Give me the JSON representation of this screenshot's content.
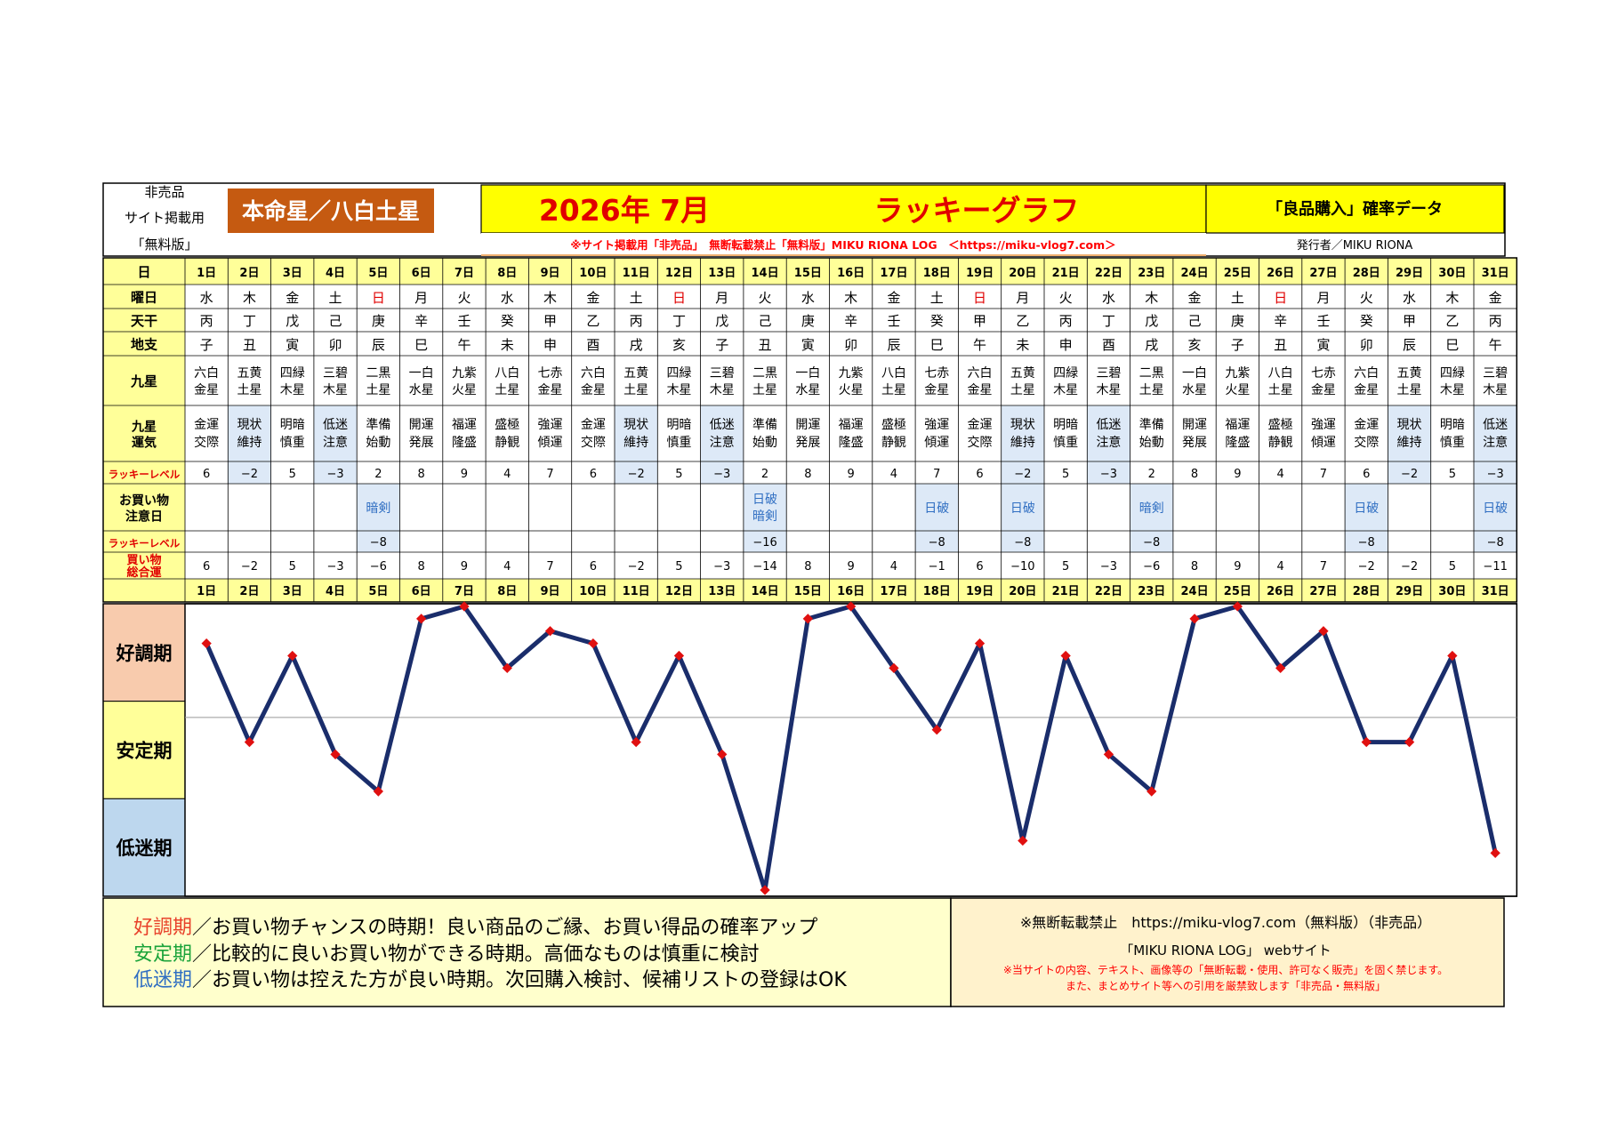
{
  "header": {
    "left_lines": [
      "非売品",
      "サイト掲載用",
      "「無料版」"
    ],
    "honmei": "本命星／八白土星",
    "year_month": "2026年 7月",
    "graph_title": "ラッキーグラフ",
    "right_title": "「良品購入」確率データ",
    "notice": "※サイト掲載用「非売品」　無断転載禁止「無料版」MIKU RIONA LOG　＜https://miku-vlog7.com＞",
    "publisher": "発行者／MIKU RIONA"
  },
  "row_labels": {
    "day": "日",
    "weekday": "曜日",
    "stem": "天干",
    "branch": "地支",
    "star": "九星",
    "fortune": [
      "九星",
      "運気"
    ],
    "lucky_level": "ラッキーレベル",
    "caution": [
      "お買い物",
      "注意日"
    ],
    "lucky_level2": "ラッキーレベル",
    "total": [
      "買い物",
      "総合運"
    ]
  },
  "days": [
    "1日",
    "2日",
    "3日",
    "4日",
    "5日",
    "6日",
    "7日",
    "8日",
    "9日",
    "10日",
    "11日",
    "12日",
    "13日",
    "14日",
    "15日",
    "16日",
    "17日",
    "18日",
    "19日",
    "20日",
    "21日",
    "22日",
    "23日",
    "24日",
    "25日",
    "26日",
    "27日",
    "28日",
    "29日",
    "30日",
    "31日"
  ],
  "weekdays": [
    "水",
    "木",
    "金",
    "土",
    "日",
    "月",
    "火",
    "水",
    "木",
    "金",
    "土",
    "日",
    "月",
    "火",
    "水",
    "木",
    "金",
    "土",
    "日",
    "月",
    "火",
    "水",
    "木",
    "金",
    "土",
    "日",
    "月",
    "火",
    "水",
    "木",
    "金"
  ],
  "stems": [
    "丙",
    "丁",
    "戊",
    "己",
    "庚",
    "辛",
    "壬",
    "癸",
    "甲",
    "乙",
    "丙",
    "丁",
    "戊",
    "己",
    "庚",
    "辛",
    "壬",
    "癸",
    "甲",
    "乙",
    "丙",
    "丁",
    "戊",
    "己",
    "庚",
    "辛",
    "壬",
    "癸",
    "甲",
    "乙",
    "丙"
  ],
  "branches": [
    "子",
    "丑",
    "寅",
    "卯",
    "辰",
    "巳",
    "午",
    "未",
    "申",
    "酉",
    "戌",
    "亥",
    "子",
    "丑",
    "寅",
    "卯",
    "辰",
    "巳",
    "午",
    "未",
    "申",
    "酉",
    "戌",
    "亥",
    "子",
    "丑",
    "寅",
    "卯",
    "辰",
    "巳",
    "午"
  ],
  "stars": [
    [
      "六白",
      "金星"
    ],
    [
      "五黄",
      "土星"
    ],
    [
      "四緑",
      "木星"
    ],
    [
      "三碧",
      "木星"
    ],
    [
      "二黒",
      "土星"
    ],
    [
      "一白",
      "水星"
    ],
    [
      "九紫",
      "火星"
    ],
    [
      "八白",
      "土星"
    ],
    [
      "七赤",
      "金星"
    ],
    [
      "六白",
      "金星"
    ],
    [
      "五黄",
      "土星"
    ],
    [
      "四緑",
      "木星"
    ],
    [
      "三碧",
      "木星"
    ],
    [
      "二黒",
      "土星"
    ],
    [
      "一白",
      "水星"
    ],
    [
      "九紫",
      "火星"
    ],
    [
      "八白",
      "土星"
    ],
    [
      "七赤",
      "金星"
    ],
    [
      "六白",
      "金星"
    ],
    [
      "五黄",
      "土星"
    ],
    [
      "四緑",
      "木星"
    ],
    [
      "三碧",
      "木星"
    ],
    [
      "二黒",
      "土星"
    ],
    [
      "一白",
      "水星"
    ],
    [
      "九紫",
      "火星"
    ],
    [
      "八白",
      "土星"
    ],
    [
      "七赤",
      "金星"
    ],
    [
      "六白",
      "金星"
    ],
    [
      "五黄",
      "土星"
    ],
    [
      "四緑",
      "木星"
    ],
    [
      "三碧",
      "木星"
    ]
  ],
  "fortunes": [
    [
      "金運",
      "交際"
    ],
    [
      "現状",
      "維持"
    ],
    [
      "明暗",
      "慎重"
    ],
    [
      "低迷",
      "注意"
    ],
    [
      "準備",
      "始動"
    ],
    [
      "開運",
      "発展"
    ],
    [
      "福運",
      "隆盛"
    ],
    [
      "盛極",
      "静観"
    ],
    [
      "強運",
      "傾運"
    ],
    [
      "金運",
      "交際"
    ],
    [
      "現状",
      "維持"
    ],
    [
      "明暗",
      "慎重"
    ],
    [
      "低迷",
      "注意"
    ],
    [
      "準備",
      "始動"
    ],
    [
      "開運",
      "発展"
    ],
    [
      "福運",
      "隆盛"
    ],
    [
      "盛極",
      "静観"
    ],
    [
      "強運",
      "傾運"
    ],
    [
      "金運",
      "交際"
    ],
    [
      "現状",
      "維持"
    ],
    [
      "明暗",
      "慎重"
    ],
    [
      "低迷",
      "注意"
    ],
    [
      "準備",
      "始動"
    ],
    [
      "開運",
      "発展"
    ],
    [
      "福運",
      "隆盛"
    ],
    [
      "盛極",
      "静観"
    ],
    [
      "強運",
      "傾運"
    ],
    [
      "金運",
      "交際"
    ],
    [
      "現状",
      "維持"
    ],
    [
      "明暗",
      "慎重"
    ],
    [
      "低迷",
      "注意"
    ]
  ],
  "lucky_levels": [
    "6",
    "−2",
    "5",
    "−3",
    "2",
    "8",
    "9",
    "4",
    "7",
    "6",
    "−2",
    "5",
    "−3",
    "2",
    "8",
    "9",
    "4",
    "7",
    "6",
    "−2",
    "5",
    "−3",
    "2",
    "8",
    "9",
    "4",
    "7",
    "6",
    "−2",
    "5",
    "−3"
  ],
  "cautions": [
    [],
    [],
    [],
    [],
    [
      "暗剣"
    ],
    [],
    [],
    [],
    [],
    [],
    [],
    [],
    [],
    [
      "日破",
      "暗剣"
    ],
    [],
    [],
    [],
    [
      "日破"
    ],
    [],
    [
      "日破"
    ],
    [],
    [],
    [
      "暗剣"
    ],
    [],
    [],
    [],
    [],
    [
      "日破"
    ],
    [],
    [],
    [
      "日破"
    ]
  ],
  "caution_levels": [
    "",
    "",
    "",
    "",
    "−8",
    "",
    "",
    "",
    "",
    "",
    "",
    "",
    "",
    "−16",
    "",
    "",
    "",
    "−8",
    "",
    "−8",
    "",
    "",
    "−8",
    "",
    "",
    "",
    "",
    "−8",
    "",
    "",
    "−8"
  ],
  "totals": [
    "6",
    "−2",
    "5",
    "−3",
    "−6",
    "8",
    "9",
    "4",
    "7",
    "6",
    "−2",
    "5",
    "−3",
    "−14",
    "8",
    "9",
    "4",
    "−1",
    "6",
    "−10",
    "5",
    "−3",
    "−6",
    "8",
    "9",
    "4",
    "7",
    "−2",
    "−2",
    "5",
    "−11"
  ],
  "period_labels": [
    "好調期",
    "安定期",
    "低迷期"
  ],
  "chart_data": {
    "type": "line",
    "title": "ラッキーグラフ",
    "xlabel": "",
    "ylabel": "",
    "x": [
      1,
      2,
      3,
      4,
      5,
      6,
      7,
      8,
      9,
      10,
      11,
      12,
      13,
      14,
      15,
      16,
      17,
      18,
      19,
      20,
      21,
      22,
      23,
      24,
      25,
      26,
      27,
      28,
      29,
      30,
      31
    ],
    "categories": [
      "1日",
      "2日",
      "3日",
      "4日",
      "5日",
      "6日",
      "7日",
      "8日",
      "9日",
      "10日",
      "11日",
      "12日",
      "13日",
      "14日",
      "15日",
      "16日",
      "17日",
      "18日",
      "19日",
      "20日",
      "21日",
      "22日",
      "23日",
      "24日",
      "25日",
      "26日",
      "27日",
      "28日",
      "29日",
      "30日",
      "31日"
    ],
    "series": [
      {
        "name": "",
        "values": [
          6,
          -2,
          5,
          -3,
          -6,
          8,
          9,
          4,
          7,
          6,
          -2,
          5,
          -3,
          -14,
          8,
          9,
          4,
          -1,
          6,
          -10,
          5,
          -3,
          -6,
          8,
          9,
          4,
          7,
          -2,
          -2,
          5,
          -11
        ]
      }
    ],
    "ylim": [
      -14,
      9
    ],
    "bands": [
      "好調期",
      "安定期",
      "低迷期"
    ],
    "grid": false,
    "line_color": "#1a2d6b",
    "marker_color": "#e01010"
  },
  "footer": {
    "legend": [
      {
        "term": "好調期",
        "text": "／お買い物チャンスの時期！良い商品のご縁、お買い得品の確率アップ"
      },
      {
        "term": "安定期",
        "text": "／比較的に良いお買い物ができる時期。高価なものは慎重に検討"
      },
      {
        "term": "低迷期",
        "text": "／お買い物は控えた方が良い時期。次回購入検討、候補リストの登録はOK"
      }
    ],
    "right_line1": "※無断転載禁止　https://miku-vlog7.com（無料版）（非売品）",
    "right_line2": "「MIKU RIONA LOG」 webサイト",
    "right_line3": "※当サイトの内容、テキスト、画像等の「無断転載・使用、許可なく販売」を固く禁じます。",
    "right_line4": "また、まとめサイト等への引用を厳禁致します「非売品・無料版」"
  },
  "colors": {
    "yellow": "#ffff99",
    "bright_yellow": "#ffff00",
    "orange_box": "#c55a11",
    "good_band": "#f8cbad",
    "stable_band": "#ffff99",
    "low_band": "#bdd7ee",
    "shade_blue": "#dde9f7",
    "red": "#e00000",
    "good_text": "#e8412a",
    "stable_text": "#1aa33a",
    "low_text": "#2f6ec2",
    "notice_red": "#ff0000",
    "footer_bg": "#ffffcc",
    "footer_right_bg": "#fff2cc"
  }
}
